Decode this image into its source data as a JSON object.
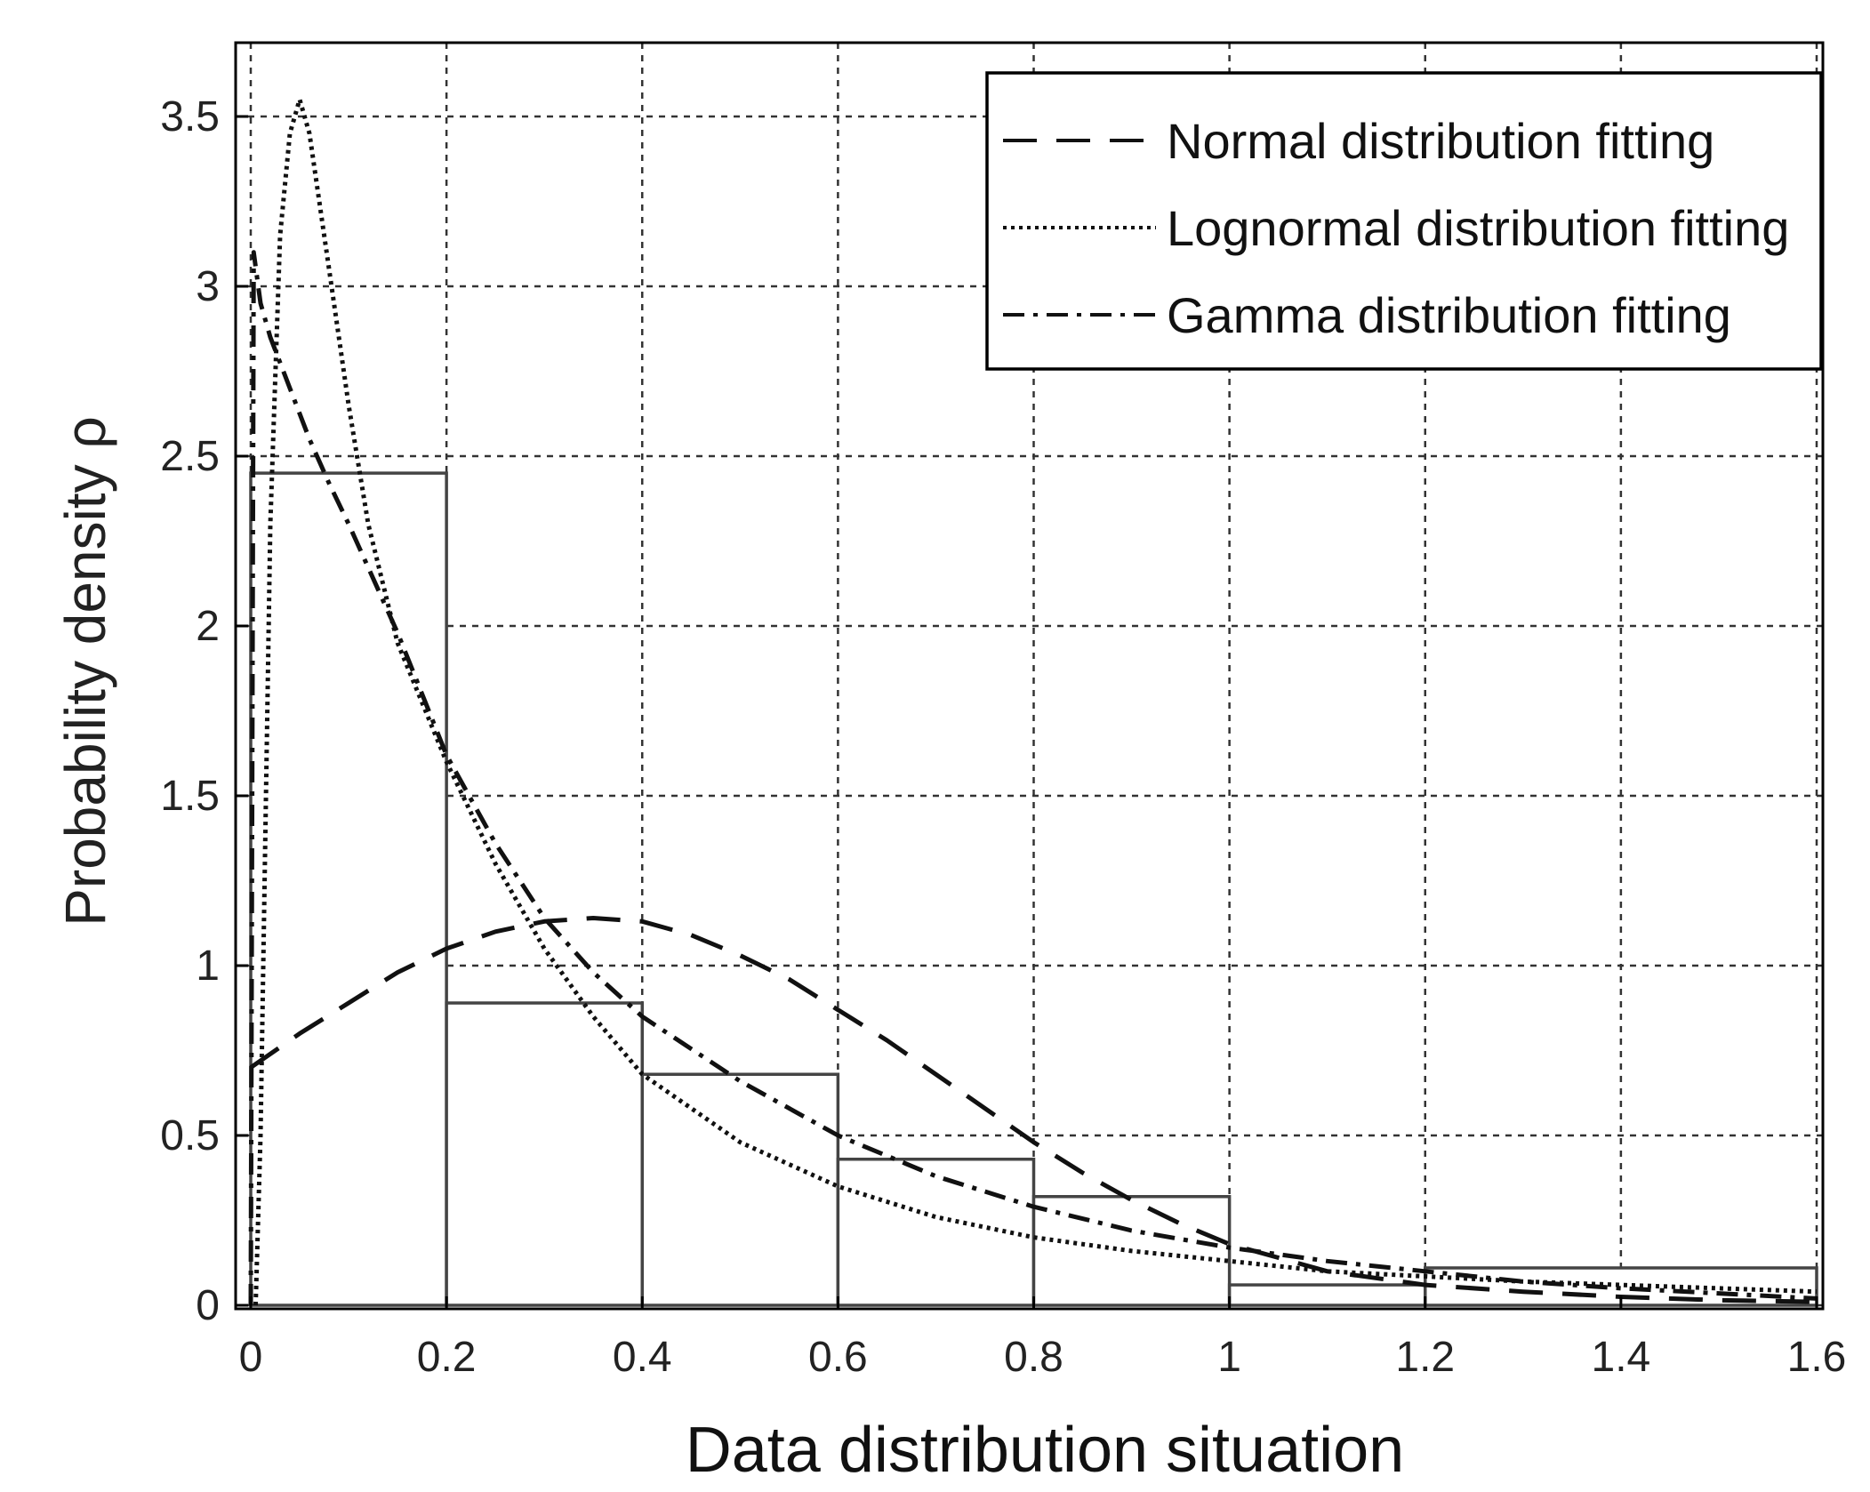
{
  "chart_data": {
    "type": "histogram",
    "xlabel": "Data distribution situation",
    "ylabel": "Probability density ρ",
    "xlim": [
      0,
      1.6
    ],
    "ylim": [
      0,
      3.7
    ],
    "x_ticks": [
      0,
      0.2,
      0.4,
      0.6,
      0.8,
      1,
      1.2,
      1.4,
      1.6
    ],
    "x_tick_labels": [
      "0",
      "0.2",
      "0.4",
      "0.6",
      "0.8",
      "1",
      "1.2",
      "1.4",
      "1.6"
    ],
    "y_ticks": [
      0,
      0.5,
      1,
      1.5,
      2,
      2.5,
      3,
      3.5
    ],
    "y_tick_labels": [
      "0",
      "0.5",
      "1",
      "1.5",
      "2",
      "2.5",
      "3",
      "3.5"
    ],
    "grid": true,
    "legend_position": "top-right",
    "histogram": {
      "bins": [
        {
          "x0": 0,
          "x1": 0.2,
          "value": 2.45
        },
        {
          "x0": 0.2,
          "x1": 0.4,
          "value": 0.89
        },
        {
          "x0": 0.4,
          "x1": 0.6,
          "value": 0.68
        },
        {
          "x0": 0.6,
          "x1": 0.8,
          "value": 0.43
        },
        {
          "x0": 0.8,
          "x1": 1.0,
          "value": 0.32
        },
        {
          "x0": 1.0,
          "x1": 1.2,
          "value": 0.06
        },
        {
          "x0": 1.2,
          "x1": 1.6,
          "value": 0.11
        }
      ]
    },
    "series": [
      {
        "name": "Normal distribution fitting",
        "dash": "long-dash",
        "x": [
          0,
          0.05,
          0.1,
          0.15,
          0.2,
          0.25,
          0.3,
          0.35,
          0.4,
          0.45,
          0.5,
          0.55,
          0.6,
          0.65,
          0.7,
          0.75,
          0.8,
          0.85,
          0.9,
          0.95,
          1.0,
          1.05,
          1.1,
          1.2,
          1.3,
          1.4,
          1.5,
          1.6
        ],
        "y": [
          0.7,
          0.8,
          0.89,
          0.98,
          1.05,
          1.1,
          1.13,
          1.14,
          1.13,
          1.09,
          1.03,
          0.96,
          0.87,
          0.78,
          0.68,
          0.58,
          0.48,
          0.39,
          0.31,
          0.24,
          0.18,
          0.14,
          0.1,
          0.06,
          0.04,
          0.025,
          0.015,
          0.01
        ]
      },
      {
        "name": "Lognormal distribution fitting",
        "dash": "dotted",
        "x": [
          0.005,
          0.01,
          0.02,
          0.03,
          0.04,
          0.05,
          0.06,
          0.08,
          0.1,
          0.12,
          0.15,
          0.2,
          0.25,
          0.3,
          0.35,
          0.4,
          0.5,
          0.6,
          0.7,
          0.8,
          0.9,
          1.0,
          1.1,
          1.2,
          1.3,
          1.4,
          1.5,
          1.6
        ],
        "y": [
          0.0,
          0.5,
          2.3,
          3.15,
          3.45,
          3.55,
          3.45,
          3.05,
          2.65,
          2.3,
          1.95,
          1.6,
          1.3,
          1.05,
          0.85,
          0.68,
          0.48,
          0.35,
          0.26,
          0.2,
          0.16,
          0.13,
          0.1,
          0.085,
          0.07,
          0.06,
          0.05,
          0.04
        ]
      },
      {
        "name": "Gamma distribution fitting",
        "dash": "dash-dot",
        "x": [
          0.0,
          0.003,
          0.01,
          0.02,
          0.04,
          0.06,
          0.08,
          0.1,
          0.15,
          0.2,
          0.25,
          0.3,
          0.35,
          0.4,
          0.5,
          0.6,
          0.7,
          0.8,
          0.9,
          1.0,
          1.1,
          1.2,
          1.3,
          1.4,
          1.5,
          1.6
        ],
        "y": [
          0.0,
          3.1,
          2.95,
          2.85,
          2.7,
          2.55,
          2.42,
          2.3,
          1.98,
          1.62,
          1.36,
          1.14,
          0.98,
          0.85,
          0.66,
          0.5,
          0.38,
          0.29,
          0.22,
          0.17,
          0.13,
          0.1,
          0.07,
          0.05,
          0.035,
          0.02
        ]
      }
    ]
  }
}
